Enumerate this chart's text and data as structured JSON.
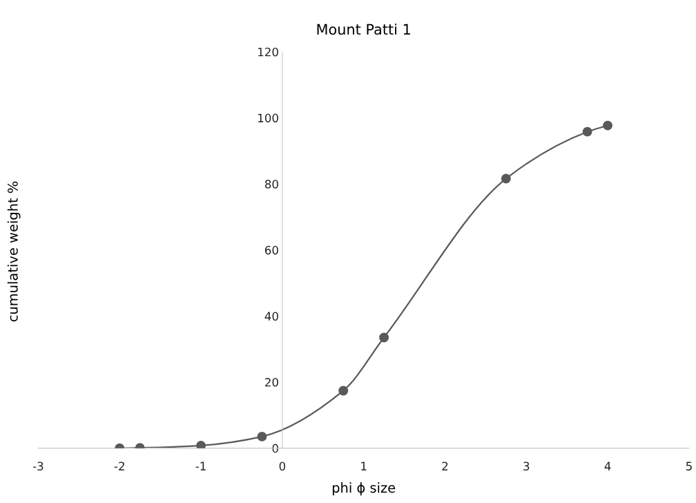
{
  "chart_data": {
    "type": "line",
    "title": "Mount Patti 1",
    "xlabel": "phi ϕ size",
    "ylabel": "cumulative weight %",
    "series": [
      {
        "color": "#595959",
        "x": [
          -2,
          -1.75,
          -1,
          -0.25,
          0.75,
          1.25,
          2.75,
          3.75,
          4
        ],
        "values": [
          0,
          0.1,
          0.8,
          3.5,
          17.4,
          33.5,
          81.6,
          95.8,
          97.7
        ]
      }
    ],
    "xlim": [
      -3,
      5
    ],
    "xticks": [
      -3,
      -2,
      -1,
      0,
      1,
      2,
      3,
      4,
      5
    ],
    "ylim": [
      0,
      120
    ],
    "yticks": [
      0,
      20,
      40,
      60,
      80,
      100,
      120
    ],
    "marker": "circle",
    "line_style": "solid",
    "grid": false,
    "legend": false
  }
}
